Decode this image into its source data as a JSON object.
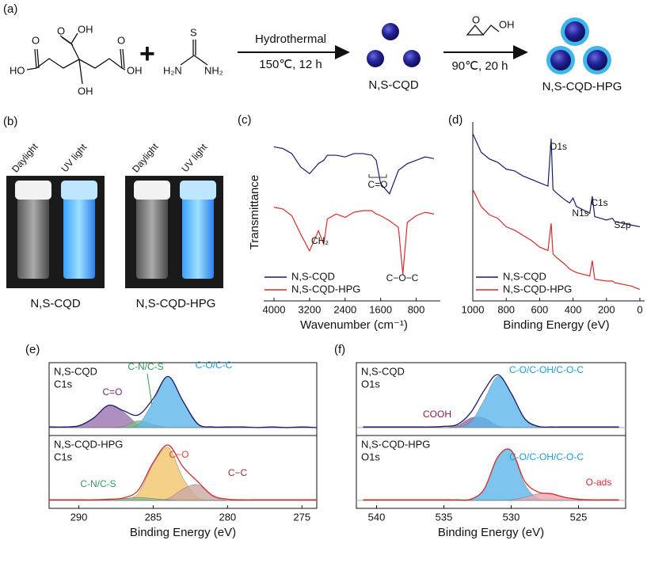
{
  "scheme": {
    "panel_label": "(a)",
    "citric_acid": [
      "O",
      "OH",
      "O",
      "HO",
      "O",
      "OH",
      "OH"
    ],
    "plus": "+",
    "thiourea": [
      "S",
      "H₂N",
      "NH₂"
    ],
    "step1": {
      "above": "Hydrothermal",
      "below": "150℃, 12 h"
    },
    "product1": "N,S-CQD",
    "glycidol": [
      "O",
      "OH"
    ],
    "step2": {
      "below": "90℃, 20 h"
    },
    "product2": "N,S-CQD-HPG"
  },
  "photos": {
    "panel_label": "(b)",
    "light_labels": [
      "Daylight",
      "UV light",
      "Daylight",
      "UV light"
    ],
    "captions": [
      "N,S-CQD",
      "N,S-CQD-HPG"
    ]
  },
  "chart_data": [
    {
      "type": "line",
      "panel_label": "(c)",
      "xlabel": "Wavenumber (cm⁻¹)",
      "ylabel": "Transmittance",
      "xlim": [
        4000,
        400
      ],
      "xticks": [
        4000,
        3200,
        2400,
        1600,
        800
      ],
      "ylim": [
        0,
        100
      ],
      "legend": "lower left",
      "x": [
        4000,
        3800,
        3600,
        3400,
        3200,
        3000,
        2880,
        2800,
        2600,
        2400,
        2200,
        2000,
        1800,
        1700,
        1600,
        1400,
        1200,
        1100,
        1000,
        800,
        600,
        400
      ],
      "series": [
        {
          "name": "N,S-CQD",
          "color": "#1a1a6e",
          "values": [
            88,
            87,
            84,
            76,
            72,
            78,
            80,
            83,
            83,
            82,
            84,
            84,
            83,
            80,
            66,
            60,
            74,
            76,
            78,
            80,
            82,
            81
          ]
        },
        {
          "name": "N,S-CQD-HPG",
          "color": "#d62c2c",
          "values": [
            52,
            51,
            47,
            36,
            26,
            38,
            30,
            45,
            48,
            46,
            49,
            50,
            50,
            48,
            47,
            44,
            40,
            12,
            43,
            47,
            49,
            48
          ]
        }
      ],
      "annotations": [
        "C=O",
        "CH₂",
        "C−O−C"
      ]
    },
    {
      "type": "line",
      "panel_label": "(d)",
      "xlabel": "Binding Energy (eV)",
      "xlim": [
        1000,
        0
      ],
      "xticks": [
        1000,
        800,
        600,
        400,
        200,
        0
      ],
      "ylim": [
        0,
        100
      ],
      "legend": "lower left",
      "x": [
        1000,
        950,
        900,
        850,
        800,
        750,
        700,
        650,
        600,
        550,
        531,
        520,
        500,
        450,
        420,
        400,
        380,
        300,
        285,
        270,
        200,
        165,
        150,
        100,
        50,
        0
      ],
      "series": [
        {
          "name": "N,S-CQD",
          "color": "#1a1a6e",
          "values": [
            95,
            84,
            80,
            78,
            74,
            73,
            70,
            68,
            66,
            64,
            92,
            62,
            60,
            56,
            54,
            57,
            52,
            48,
            58,
            46,
            44,
            45,
            43,
            42,
            41,
            40
          ]
        },
        {
          "name": "N,S-CQD-HPG",
          "color": "#d62c2c",
          "values": [
            62,
            52,
            47,
            45,
            40,
            38,
            35,
            32,
            28,
            26,
            42,
            24,
            22,
            18,
            15,
            14,
            13,
            11,
            20,
            9,
            8,
            8,
            7,
            6,
            5,
            3
          ]
        }
      ],
      "annotations": [
        "O1s",
        "N1s",
        "C1s",
        "S2p"
      ]
    },
    {
      "type": "xps",
      "panel_label": "(e)",
      "sample": "N,S-CQD",
      "core_level": "C1s",
      "xlim": [
        292,
        274
      ],
      "ylim": [
        -8,
        100
      ],
      "x": [
        292,
        291,
        290,
        289,
        288,
        287,
        286,
        285,
        284,
        283,
        282,
        281,
        280,
        279,
        278,
        277,
        276,
        275,
        274
      ],
      "series": [
        {
          "color": "#1a1a6e",
          "values": [
            1,
            1,
            3,
            16,
            37,
            28,
            21,
            48,
            85,
            44,
            6,
            1,
            1,
            1,
            0,
            1,
            0,
            1,
            0
          ]
        },
        {
          "name": "C=O",
          "color": "#9b72b0",
          "label_color": "#7a2a6a",
          "values": [
            0,
            0,
            2,
            16,
            37,
            26,
            5,
            0,
            0,
            0,
            0,
            0,
            0,
            0,
            0,
            0,
            0,
            0,
            0
          ]
        },
        {
          "name": "C-N/C-S",
          "color": "#7cc08a",
          "label_color": "#2e9a5a",
          "values": [
            0,
            0,
            0,
            0,
            0,
            2,
            11,
            5,
            0,
            0,
            0,
            0,
            0,
            0,
            0,
            0,
            0,
            0,
            0
          ]
        },
        {
          "name": "C-O/C-C",
          "color": "#5cb6ea",
          "label_color": "#1e9ad6",
          "values": [
            0,
            0,
            0,
            0,
            0,
            0,
            5,
            43,
            85,
            43,
            5,
            0,
            0,
            0,
            0,
            0,
            0,
            0,
            0
          ]
        }
      ]
    },
    {
      "type": "xps",
      "sample": "N,S-CQD-HPG",
      "core_level": "C1s",
      "xlabel": "Binding Energy (eV)",
      "xlim": [
        292,
        274
      ],
      "xticks": [
        290,
        285,
        280,
        275
      ],
      "ylim": [
        -8,
        100
      ],
      "x": [
        292,
        291,
        290,
        289,
        288,
        287,
        286,
        285,
        284,
        283,
        282,
        281,
        280,
        279,
        278,
        277,
        276,
        275,
        274
      ],
      "series": [
        {
          "color": "#d62c2c",
          "values": [
            1,
            1,
            1,
            1,
            2,
            4,
            17,
            63,
            92,
            56,
            31,
            8,
            2,
            1,
            1,
            1,
            1,
            1,
            1
          ]
        },
        {
          "name": "C−O",
          "color": "#f2c46a",
          "label_color": "#e0442e",
          "values": [
            0,
            0,
            0,
            0,
            0,
            1,
            12,
            60,
            88,
            37,
            5,
            0,
            0,
            0,
            0,
            0,
            0,
            0,
            0
          ]
        },
        {
          "name": "C−C",
          "color": "#c9a7a3",
          "label_color": "#9a2a2a",
          "values": [
            0,
            0,
            0,
            0,
            0,
            0,
            0,
            0,
            3,
            19,
            26,
            7,
            0,
            0,
            0,
            0,
            0,
            0,
            0
          ]
        },
        {
          "name": "C-N/C-S",
          "color": "#7cc08a",
          "label_color": "#2e9a5a",
          "values": [
            0,
            0,
            0,
            0,
            1,
            3,
            5,
            3,
            1,
            0,
            0,
            0,
            0,
            0,
            0,
            0,
            0,
            0,
            0
          ]
        }
      ]
    },
    {
      "type": "xps",
      "panel_label": "(f)",
      "sample": "N,S-CQD",
      "core_level": "O1s",
      "xlim": [
        541.5,
        521.5
      ],
      "ylim": [
        -8,
        100
      ],
      "x": [
        541,
        540,
        539,
        538,
        537,
        536,
        535,
        534,
        533,
        532,
        531,
        530,
        529,
        528,
        527,
        526,
        525,
        524,
        523,
        522
      ],
      "series": [
        {
          "color": "#1a1a6e",
          "values": [
            1,
            1,
            1,
            1,
            1,
            1,
            2,
            5,
            25,
            62,
            88,
            57,
            15,
            2,
            1,
            1,
            1,
            1,
            1,
            1
          ]
        },
        {
          "name": "COOH",
          "color": "#8a6aa6",
          "label_color": "#8b1a4a",
          "values": [
            0,
            0,
            0,
            0,
            0,
            0,
            0,
            3,
            16,
            16,
            3,
            0,
            0,
            0,
            0,
            0,
            0,
            0,
            0,
            0
          ]
        },
        {
          "name": "C-O/C-OH/C-O-C",
          "color": "#5cb6ea",
          "label_color": "#1e9ad6",
          "values": [
            0,
            0,
            0,
            0,
            0,
            0,
            0,
            1,
            9,
            46,
            85,
            57,
            14,
            1,
            0,
            0,
            0,
            0,
            0,
            0
          ]
        }
      ]
    },
    {
      "type": "xps",
      "sample": "N,S-CQD-HPG",
      "core_level": "O1s",
      "xlabel": "Binding Energy (eV)",
      "xlim": [
        541.5,
        521.5
      ],
      "xticks": [
        540,
        535,
        530,
        525
      ],
      "ylim": [
        -8,
        100
      ],
      "x": [
        541,
        540,
        539,
        538,
        537,
        536,
        535,
        534,
        533,
        532,
        531,
        530,
        529,
        528,
        527,
        526,
        525,
        524,
        523,
        522
      ],
      "series": [
        {
          "color": "#d62c2c",
          "values": [
            1,
            1,
            1,
            1,
            1,
            1,
            1,
            1,
            2,
            19,
            72,
            83,
            32,
            14,
            11,
            5,
            2,
            1,
            1,
            1
          ]
        },
        {
          "name": "C-O/C-OH/C-O-C",
          "color": "#5cb6ea",
          "label_color": "#1e9ad6",
          "values": [
            0,
            0,
            0,
            0,
            0,
            0,
            0,
            0,
            1,
            19,
            72,
            82,
            27,
            3,
            0,
            0,
            0,
            0,
            0,
            0
          ]
        },
        {
          "name": "O-ads",
          "color": "#eba6b0",
          "label_color": "#d62c2c",
          "values": [
            0,
            0,
            0,
            0,
            0,
            0,
            0,
            0,
            0,
            0,
            0,
            1,
            5,
            11,
            11,
            5,
            1,
            0,
            0,
            0
          ]
        }
      ]
    }
  ]
}
